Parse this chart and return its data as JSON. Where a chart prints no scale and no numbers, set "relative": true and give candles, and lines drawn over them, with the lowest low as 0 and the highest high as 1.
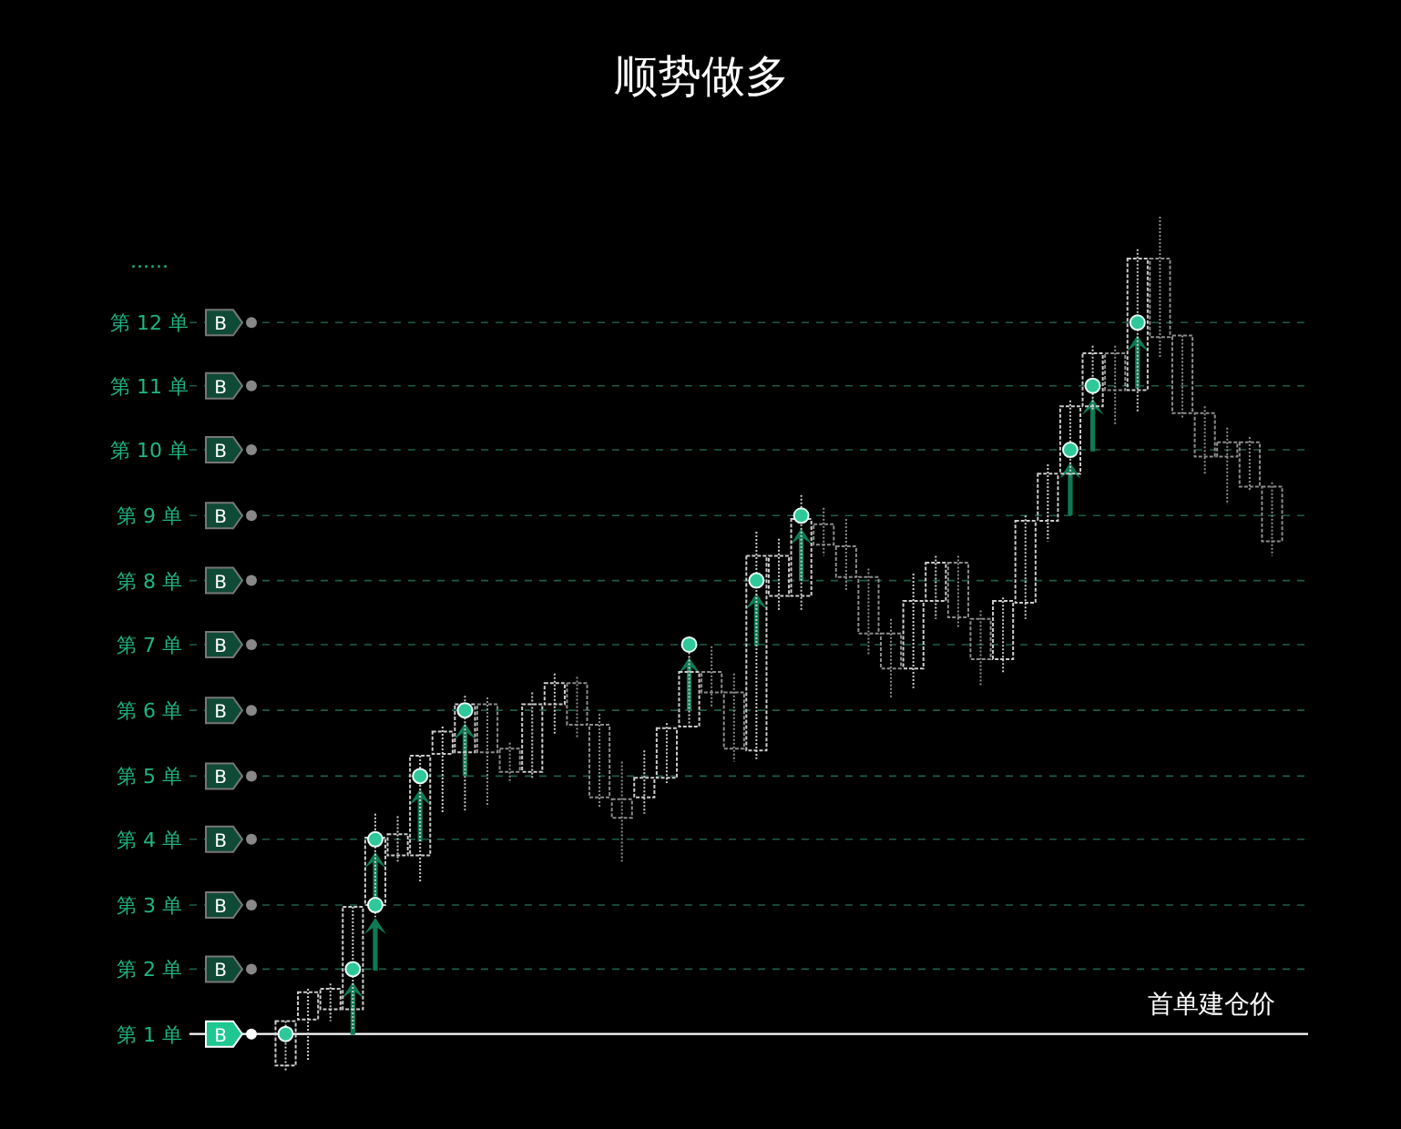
{
  "chart_data": {
    "type": "candlestick",
    "title": "顺势做多",
    "relative": true,
    "categories": [
      null,
      null,
      null,
      null,
      null,
      null,
      null,
      null,
      null,
      null,
      null,
      null,
      null,
      null,
      null,
      null,
      null,
      null,
      null,
      null,
      null,
      null,
      null,
      null,
      null,
      null,
      null,
      null,
      null,
      null,
      null,
      null,
      null,
      null,
      null,
      null,
      null,
      null,
      null,
      null,
      null,
      null,
      null,
      null,
      null
    ],
    "colors": [
      "#cccccc",
      "#cccccc",
      "#cccccc",
      "#cccccc",
      "#cccccc",
      "#cccccc",
      "#cccccc",
      "#cccccc",
      "#cccccc",
      "#8c8c8c",
      "#8c8c8c",
      "#cccccc",
      "#cccccc",
      "#8c8c8c",
      "#8c8c8c",
      "#8c8c8c",
      "#cccccc",
      "#cccccc",
      "#cccccc",
      "#8c8c8c",
      "#8c8c8c",
      "#cccccc",
      "#cccccc",
      "#cccccc",
      "#8c8c8c",
      "#8c8c8c",
      "#8c8c8c",
      "#8c8c8c",
      "#cccccc",
      "#cccccc",
      "#8c8c8c",
      "#8c8c8c",
      "#cccccc",
      "#cccccc",
      "#cccccc",
      "#cccccc",
      "#cccccc",
      "#8c8c8c",
      "#cccccc",
      "#8c8c8c",
      "#8c8c8c",
      "#8c8c8c",
      "#8c8c8c",
      "#8c8c8c",
      "#8c8c8c"
    ],
    "ohlc": [
      [
        0.006,
        0.058,
        0,
        0.058
      ],
      [
        0.06,
        0.096,
        0.011,
        0.092
      ],
      [
        0.072,
        0.102,
        0.058,
        0.096
      ],
      [
        0.072,
        0.192,
        0.049,
        0.192
      ],
      [
        0.194,
        0.301,
        0.18,
        0.273
      ],
      [
        0.252,
        0.298,
        0.245,
        0.277
      ],
      [
        0.252,
        0.369,
        0.22,
        0.369
      ],
      [
        0.371,
        0.403,
        0.301,
        0.397
      ],
      [
        0.373,
        0.439,
        0.305,
        0.429
      ],
      [
        0.429,
        0.437,
        0.309,
        0.373
      ],
      [
        0.377,
        0.384,
        0.337,
        0.35
      ],
      [
        0.35,
        0.443,
        0.343,
        0.429
      ],
      [
        0.429,
        0.465,
        0.394,
        0.454
      ],
      [
        0.454,
        0.461,
        0.39,
        0.405
      ],
      [
        0.405,
        0.418,
        0.309,
        0.32
      ],
      [
        0.318,
        0.362,
        0.245,
        0.296
      ],
      [
        0.32,
        0.375,
        0.301,
        0.343
      ],
      [
        0.343,
        0.407,
        0.337,
        0.401
      ],
      [
        0.403,
        0.507,
        0.401,
        0.467
      ],
      [
        0.467,
        0.497,
        0.426,
        0.443
      ],
      [
        0.443,
        0.465,
        0.362,
        0.377
      ],
      [
        0.375,
        0.631,
        0.365,
        0.603
      ],
      [
        0.556,
        0.623,
        0.539,
        0.603
      ],
      [
        0.556,
        0.674,
        0.539,
        0.646
      ],
      [
        0.64,
        0.659,
        0.603,
        0.616
      ],
      [
        0.614,
        0.646,
        0.561,
        0.578
      ],
      [
        0.578,
        0.588,
        0.486,
        0.512
      ],
      [
        0.512,
        0.529,
        0.437,
        0.471
      ],
      [
        0.471,
        0.582,
        0.448,
        0.55
      ],
      [
        0.55,
        0.603,
        0.529,
        0.595
      ],
      [
        0.595,
        0.603,
        0.518,
        0.531
      ],
      [
        0.529,
        0.539,
        0.45,
        0.482
      ],
      [
        0.482,
        0.554,
        0.465,
        0.55
      ],
      [
        0.548,
        0.65,
        0.529,
        0.644
      ],
      [
        0.644,
        0.71,
        0.62,
        0.699
      ],
      [
        0.699,
        0.785,
        0.695,
        0.778
      ],
      [
        0.778,
        0.849,
        0.774,
        0.84
      ],
      [
        0.84,
        0.849,
        0.757,
        0.797
      ],
      [
        0.797,
        0.962,
        0.77,
        0.951
      ],
      [
        0.951,
        1,
        0.834,
        0.859
      ],
      [
        0.861,
        0.861,
        0.763,
        0.77
      ],
      [
        0.77,
        0.778,
        0.699,
        0.719
      ],
      [
        0.736,
        0.753,
        0.663,
        0.719
      ],
      [
        0.736,
        0.742,
        0.678,
        0.684
      ],
      [
        0.684,
        0.689,
        0.603,
        0.62
      ]
    ],
    "series": [
      {
        "type": "scatter",
        "color": "#2ec89a",
        "marker": "circle",
        "values": [
          0.043,
          null,
          null,
          0.119,
          0.194,
          null,
          0.345,
          null,
          0.422,
          null,
          null,
          null,
          null,
          null,
          null,
          null,
          null,
          null,
          0.499,
          null,
          null,
          0.574,
          null,
          0.65,
          null,
          null,
          null,
          null,
          null,
          null,
          null,
          null,
          null,
          null,
          null,
          0.727,
          0.802,
          null,
          0.876,
          null,
          null,
          null,
          null,
          null,
          null
        ]
      },
      {
        "type": "scatter",
        "color": "#2ec89a",
        "marker": "circle",
        "values": [
          null,
          null,
          null,
          null,
          0.271,
          null,
          null,
          null,
          null,
          null,
          null,
          null,
          null,
          null,
          null,
          null,
          null,
          null,
          null,
          null,
          null,
          null,
          null,
          null,
          null,
          null,
          null,
          null,
          null,
          null,
          null,
          null,
          null,
          null,
          null,
          null,
          null,
          null,
          null,
          null,
          null,
          null,
          null,
          null,
          null
        ]
      }
    ],
    "ref_lines": [
      {
        "axis": "y",
        "value": 0.043,
        "label": "第 1 单",
        "color": "#ffffff",
        "line_style": "solid"
      },
      {
        "axis": "y",
        "value": 0.119,
        "label": "第 2 单",
        "color": "#1e5c48",
        "line_style": "dashed"
      },
      {
        "axis": "y",
        "value": 0.194,
        "label": "第 3 单",
        "color": "#1e5c48",
        "line_style": "dashed"
      },
      {
        "axis": "y",
        "value": 0.271,
        "label": "第 4 单",
        "color": "#1e5c48",
        "line_style": "dashed"
      },
      {
        "axis": "y",
        "value": 0.345,
        "label": "第 5 单",
        "color": "#1e5c48",
        "line_style": "dashed"
      },
      {
        "axis": "y",
        "value": 0.422,
        "label": "第 6 单",
        "color": "#1e5c48",
        "line_style": "dashed"
      },
      {
        "axis": "y",
        "value": 0.499,
        "label": "第 7 单",
        "color": "#1e5c48",
        "line_style": "dashed"
      },
      {
        "axis": "y",
        "value": 0.574,
        "label": "第 8 单",
        "color": "#1e5c48",
        "line_style": "dashed"
      },
      {
        "axis": "y",
        "value": 0.65,
        "label": "第 9 单",
        "color": "#1e5c48",
        "line_style": "dashed"
      },
      {
        "axis": "y",
        "value": 0.727,
        "label": "第 10 单",
        "color": "#1e5c48",
        "line_style": "dashed"
      },
      {
        "axis": "y",
        "value": 0.802,
        "label": "第 11 单",
        "color": "#1e5c48",
        "line_style": "dashed"
      },
      {
        "axis": "y",
        "value": 0.876,
        "label": "第 12 单",
        "color": "#1e5c48",
        "line_style": "dashed"
      }
    ],
    "annotations": [
      "......",
      "首单建仓价",
      "B",
      "B",
      "B",
      "B",
      "B",
      "B",
      "B",
      "B",
      "B",
      "B",
      "B",
      "B"
    ]
  }
}
